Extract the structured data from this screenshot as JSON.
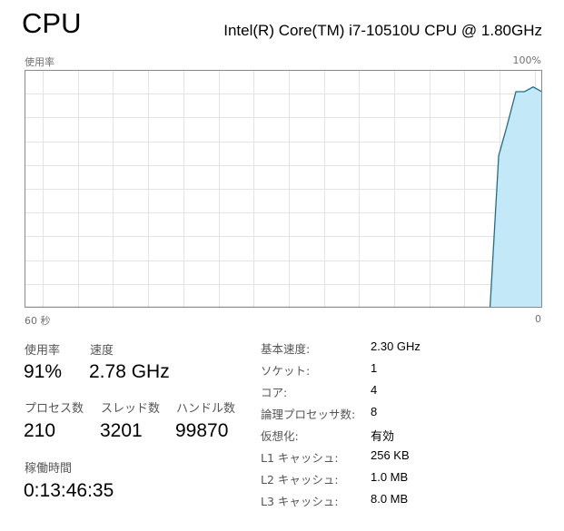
{
  "header": {
    "title": "CPU",
    "model": "Intel(R) Core(TM) i7-10510U CPU @ 1.80GHz"
  },
  "graph": {
    "ylabel": "使用率",
    "ymax_label": "100%",
    "xleft_label": "60 秒",
    "xright_label": "0",
    "colors": {
      "line": "#1f6f8b",
      "fill": "#c3e8f8",
      "grid": "#e3e3e3",
      "border": "#8a8a8a"
    }
  },
  "chart_data": {
    "type": "area",
    "ylabel": "使用率",
    "xlim": [
      60,
      0
    ],
    "ylim": [
      0,
      100
    ],
    "x_unit": "秒",
    "grid": true,
    "x": [
      60,
      7,
      6,
      5,
      4,
      3,
      2,
      1,
      0
    ],
    "values": [
      0,
      0,
      0,
      64,
      77,
      91,
      91,
      93,
      91
    ]
  },
  "stats": [
    {
      "label": "使用率",
      "value": "91%"
    },
    {
      "label": "速度",
      "value": "2.78 GHz"
    },
    {
      "label": "プロセス数",
      "value": "210"
    },
    {
      "label": "スレッド数",
      "value": "3201"
    },
    {
      "label": "ハンドル数",
      "value": "99870"
    },
    {
      "label": "稼働時間",
      "value": "0:13:46:35"
    }
  ],
  "specs": [
    {
      "key": "基本速度:",
      "value": "2.30 GHz"
    },
    {
      "key": "ソケット:",
      "value": "1"
    },
    {
      "key": "コア:",
      "value": "4"
    },
    {
      "key": "論理プロセッサ数:",
      "value": "8"
    },
    {
      "key": "仮想化:",
      "value": "有効"
    },
    {
      "key": "L1 キャッシュ:",
      "value": "256 KB"
    },
    {
      "key": "L2 キャッシュ:",
      "value": "1.0 MB"
    },
    {
      "key": "L3 キャッシュ:",
      "value": "8.0 MB"
    }
  ]
}
